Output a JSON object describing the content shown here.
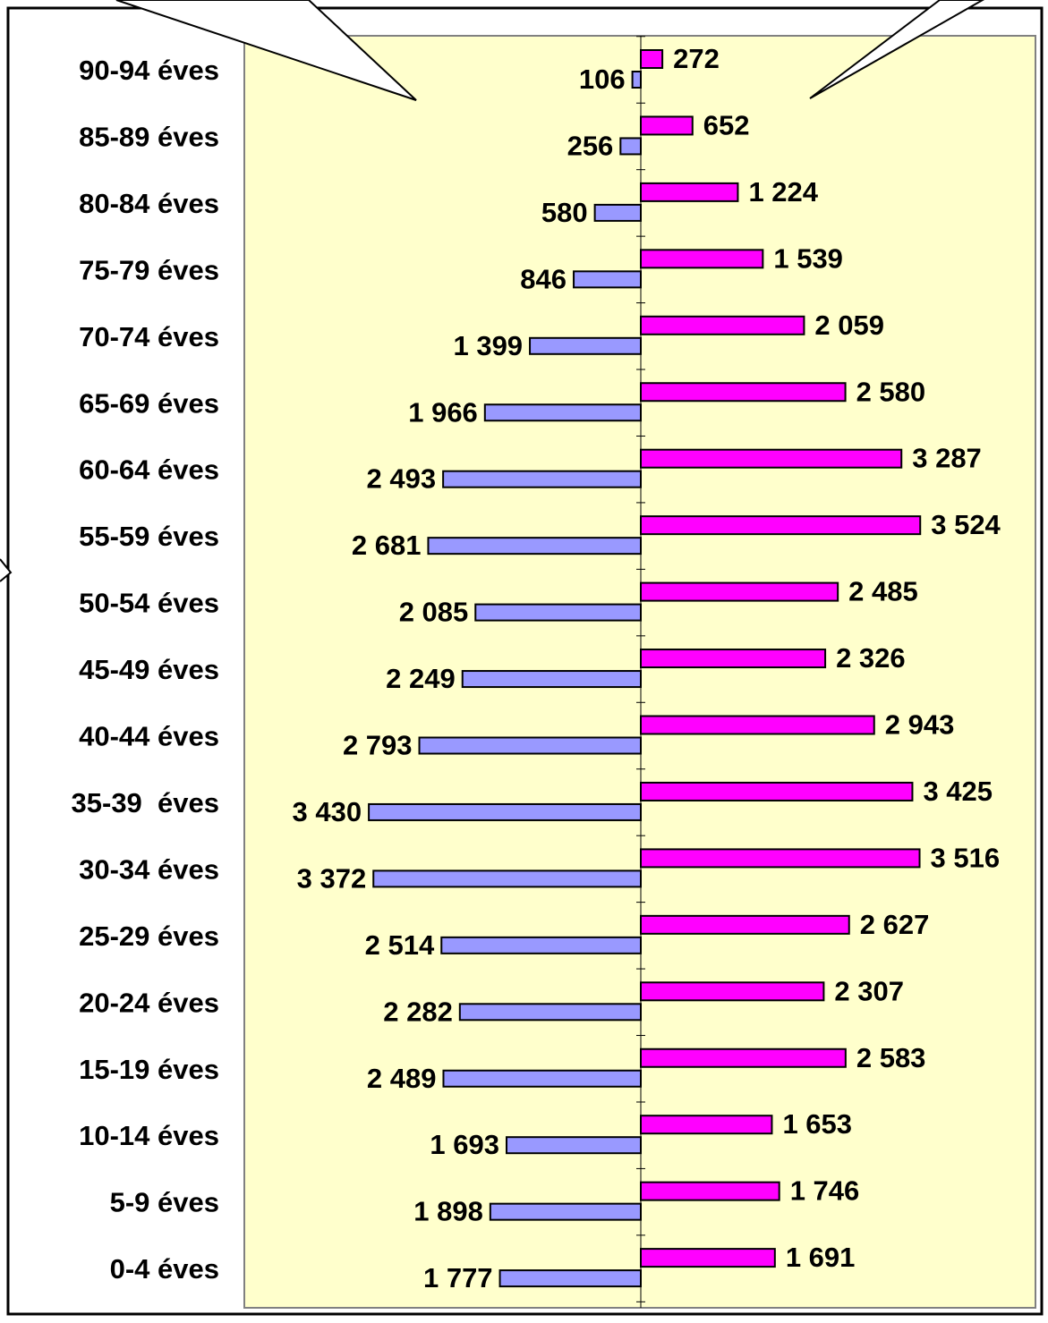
{
  "chart_data": {
    "type": "bar",
    "orientation": "horizontal",
    "layout": "pyramid",
    "categories": [
      "90-94 éves",
      "85-89 éves",
      "80-84 éves",
      "75-79 éves",
      "70-74 éves",
      "65-69 éves",
      "60-64 éves",
      "55-59 éves",
      "50-54 éves",
      "45-49 éves",
      "40-44 éves",
      "35-39  éves",
      "30-34 éves",
      "25-29 éves",
      "20-24 éves",
      "15-19 éves",
      "10-14 éves",
      "5-9 éves",
      "0-4 éves"
    ],
    "series": [
      {
        "color": "#9999ff",
        "side": "left",
        "values": [
          106,
          256,
          580,
          846,
          1399,
          1966,
          2493,
          2681,
          2085,
          2249,
          2793,
          3430,
          3372,
          2514,
          2282,
          2489,
          1693,
          1898,
          1777
        ],
        "value_labels": [
          "106",
          "256",
          "580",
          "846",
          "1 399",
          "1 966",
          "2 493",
          "2 681",
          "2 085",
          "2 249",
          "2 793",
          "3 430",
          "3 372",
          "2 514",
          "2 282",
          "2 489",
          "1 693",
          "1 898",
          "1 777"
        ]
      },
      {
        "color": "#ff00ff",
        "side": "right",
        "values": [
          272,
          652,
          1224,
          1539,
          2059,
          2580,
          3287,
          3524,
          2485,
          2326,
          2943,
          3425,
          3516,
          2627,
          2307,
          2583,
          1653,
          1746,
          1691
        ],
        "value_labels": [
          "272",
          "652",
          "1 224",
          "1 539",
          "2 059",
          "2 580",
          "3 287",
          "3 524",
          "2 485",
          "2 326",
          "2 943",
          "3 425",
          "3 516",
          "2 627",
          "2 307",
          "2 583",
          "1 653",
          "1 746",
          "1 691"
        ]
      }
    ],
    "xlim": [
      0,
      5000
    ],
    "plot_background": "#ffffcc"
  }
}
